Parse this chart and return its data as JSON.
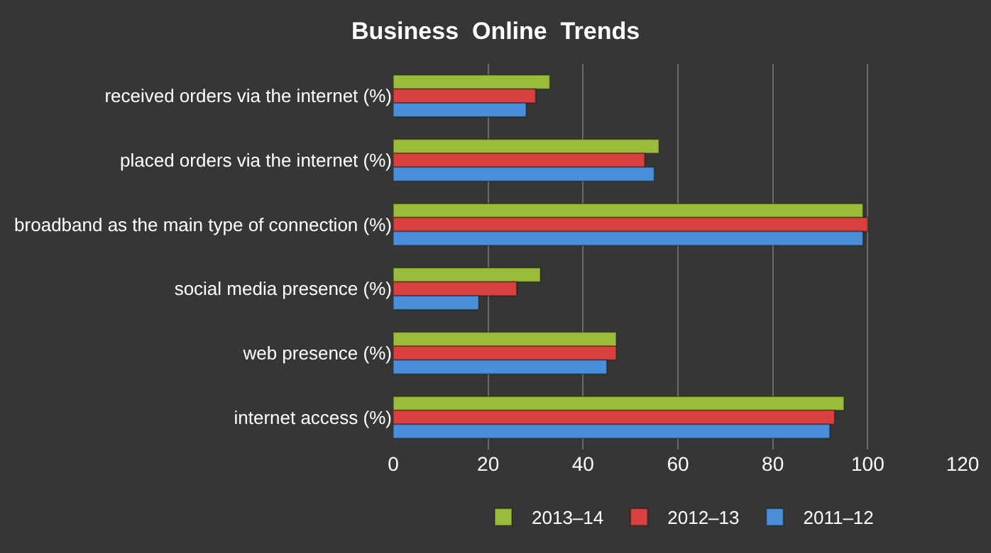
{
  "chart_data": {
    "type": "bar",
    "orientation": "horizontal",
    "title": "Business  Online  Trends",
    "categories": [
      "received orders via the internet (%)",
      "placed orders via the internet (%)",
      "broadband as the main type of connection (%)",
      "social media presence (%)",
      "web presence (%)",
      "internet access (%)"
    ],
    "series": [
      {
        "name": "2013–14",
        "color": "#9bbb3b",
        "values": [
          33,
          56,
          99,
          31,
          47,
          95
        ]
      },
      {
        "name": "2012–13",
        "color": "#d9413e",
        "values": [
          30,
          53,
          100,
          26,
          47,
          93
        ]
      },
      {
        "name": "2011–12",
        "color": "#4a8fd9",
        "values": [
          28,
          55,
          99,
          18,
          45,
          92
        ]
      }
    ],
    "xlim": [
      0,
      120
    ],
    "xticks": [
      0,
      20,
      40,
      60,
      80,
      100,
      120
    ],
    "grid": "x",
    "legend": "bottom"
  }
}
